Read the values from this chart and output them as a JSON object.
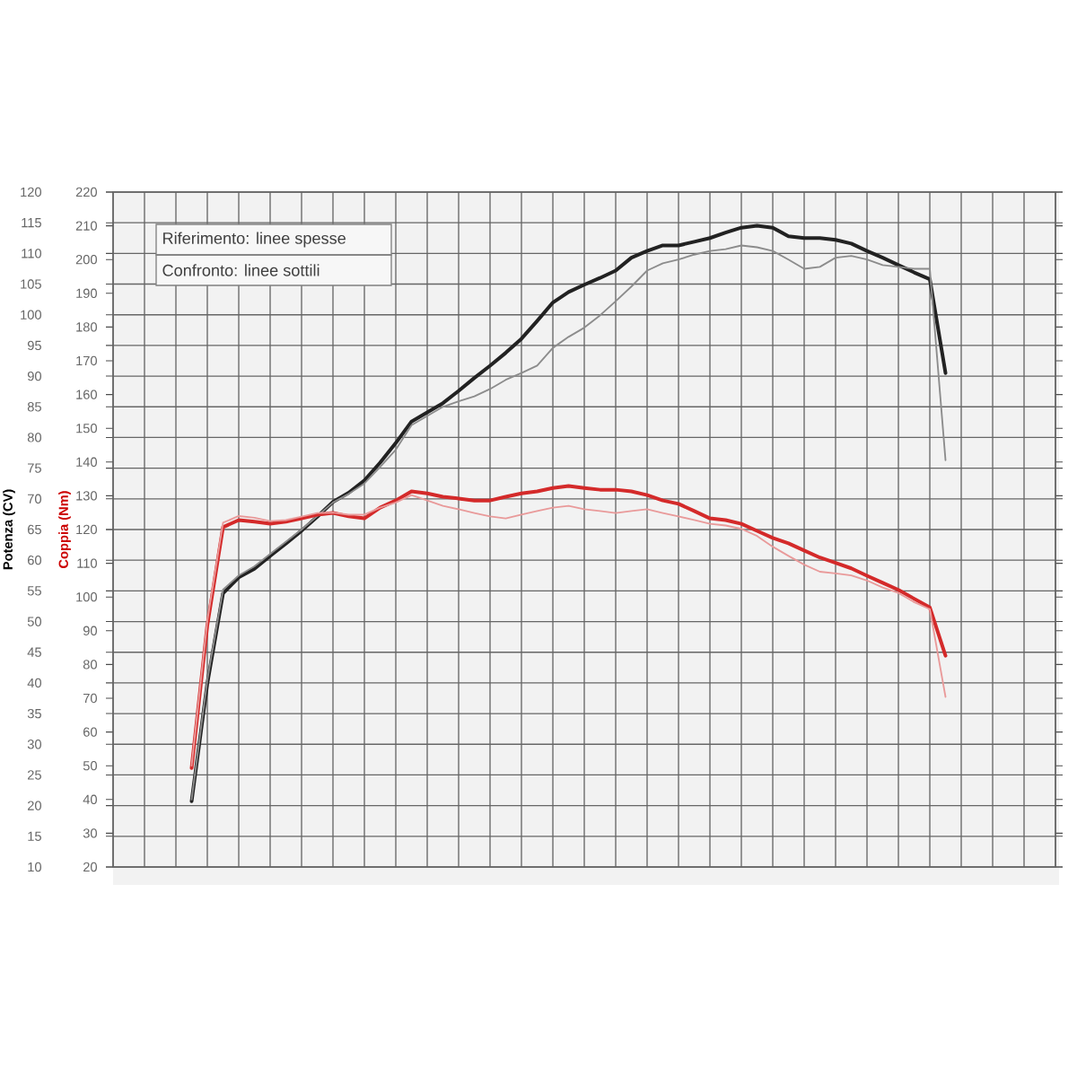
{
  "chart_data": {
    "type": "line",
    "ylabel": "Coppia (Nm)",
    "y2label": "Potenza (CV)",
    "categories": [
      null,
      null,
      null,
      null,
      null,
      null,
      null,
      null,
      null,
      null,
      null,
      null,
      null,
      null,
      null,
      null,
      null,
      null,
      null,
      null,
      null,
      null,
      null,
      null,
      null,
      null,
      null,
      null,
      null,
      null,
      null,
      null,
      null,
      null,
      null,
      null,
      null,
      null,
      null,
      null,
      null,
      null,
      null,
      null,
      null,
      null,
      null,
      null,
      null
    ],
    "series": [
      {
        "color": "#222222",
        "axis": "y2",
        "values": [
          20.7,
          39.9,
          54.6,
          57.2,
          58.6,
          60.7,
          62.7,
          64.8,
          67.1,
          69.5,
          71.0,
          73.0,
          75.9,
          79.1,
          82.6,
          84.1,
          85.6,
          87.6,
          89.7,
          91.7,
          93.8,
          96.1,
          99.0,
          102.0,
          103.7,
          104.9,
          106.0,
          107.2,
          109.3,
          110.4,
          111.3,
          111.3,
          111.9,
          112.5,
          113.4,
          114.2,
          114.5,
          114.2,
          112.8,
          112.5,
          112.5,
          112.2,
          111.6,
          110.4,
          109.3,
          108.1,
          106.9,
          105.8,
          90.5
        ]
      },
      {
        "color": "#8c8c8c",
        "axis": "y2",
        "values": [
          21.0,
          40.5,
          55.2,
          57.5,
          59.0,
          61.0,
          63.0,
          65.0,
          67.2,
          69.4,
          70.8,
          72.5,
          75.2,
          78.0,
          82.0,
          83.5,
          85.0,
          85.9,
          86.7,
          87.9,
          89.4,
          90.5,
          91.7,
          94.6,
          96.4,
          97.9,
          99.9,
          102.2,
          104.6,
          107.2,
          108.4,
          109.0,
          109.8,
          110.4,
          110.7,
          111.3,
          111.0,
          110.4,
          109.0,
          107.5,
          107.8,
          109.3,
          109.6,
          109.0,
          108.1,
          107.8,
          107.5,
          107.5,
          76.3
        ]
      },
      {
        "color": "#d42a2a",
        "values": [
          49.3,
          91.6,
          120.7,
          122.8,
          122.3,
          121.7,
          122.3,
          123.3,
          124.4,
          124.9,
          123.9,
          123.3,
          126.5,
          128.6,
          131.3,
          130.7,
          129.7,
          129.2,
          128.6,
          128.6,
          129.7,
          130.7,
          131.3,
          132.3,
          132.9,
          132.3,
          131.8,
          131.8,
          131.3,
          130.2,
          128.6,
          127.6,
          125.5,
          123.3,
          122.8,
          121.7,
          119.6,
          117.5,
          115.9,
          113.8,
          111.7,
          110.1,
          108.5,
          106.3,
          104.2,
          102.1,
          99.5,
          96.9,
          82.6
        ]
      },
      {
        "color": "#e99a9a",
        "values": [
          50.0,
          93.0,
          122.0,
          124.0,
          123.5,
          122.5,
          122.8,
          123.8,
          124.9,
          125.0,
          124.4,
          124.4,
          126.5,
          128.0,
          130.2,
          128.6,
          127.0,
          126.0,
          124.9,
          123.9,
          123.3,
          124.4,
          125.5,
          126.5,
          127.0,
          126.0,
          125.5,
          124.9,
          125.5,
          126.0,
          124.9,
          123.9,
          122.8,
          121.7,
          121.2,
          120.2,
          118.1,
          114.9,
          112.2,
          109.6,
          107.5,
          107.0,
          106.4,
          104.9,
          102.8,
          101.2,
          98.5,
          96.4,
          70.4
        ]
      }
    ],
    "ylim": [
      20,
      220
    ],
    "yticks": [
      20,
      30,
      40,
      50,
      60,
      70,
      80,
      90,
      100,
      110,
      120,
      130,
      140,
      150,
      160,
      170,
      180,
      190,
      200,
      210,
      220
    ],
    "y2lim": [
      10,
      120
    ],
    "y2ticks": [
      10,
      15,
      20,
      25,
      30,
      35,
      40,
      45,
      50,
      55,
      60,
      65,
      70,
      75,
      80,
      85,
      90,
      95,
      100,
      105,
      110,
      115,
      120
    ],
    "grid": true,
    "tick_labels": "y",
    "annotations": [
      "Riferimento: linee spesse",
      "Confronto: linee sottili"
    ]
  }
}
